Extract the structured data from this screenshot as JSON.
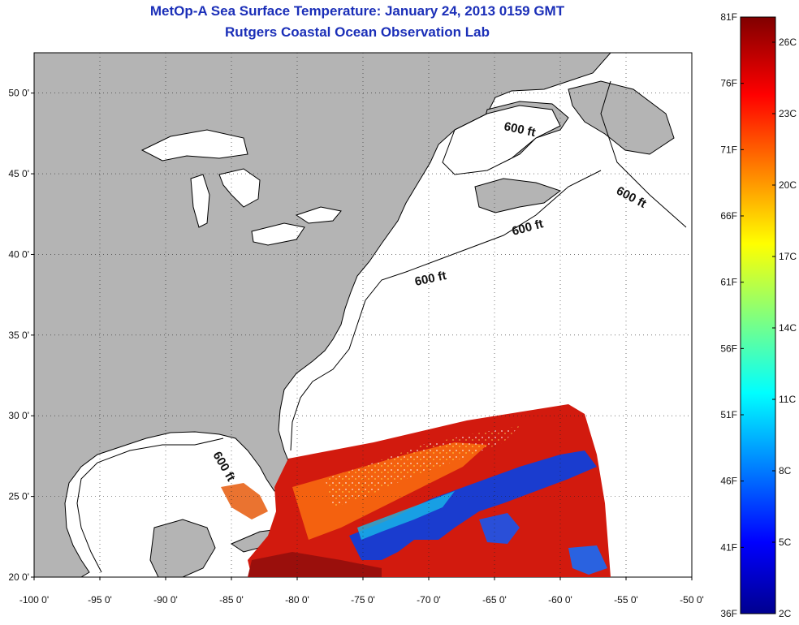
{
  "title": "MetOp-A Sea Surface Temperature:  January 24, 2013 0159 GMT",
  "subtitle": "Rutgers Coastal Ocean Observation Lab",
  "map": {
    "x_ticks": [
      "-100 0'",
      "-95 0'",
      "-90 0'",
      "-85 0'",
      "-80 0'",
      "-75 0'",
      "-70 0'",
      "-65 0'",
      "-60 0'",
      "-55 0'",
      "-50 0'"
    ],
    "y_ticks": [
      "50 0'",
      "45 0'",
      "40 0'",
      "35 0'",
      "30 0'",
      "25 0'",
      "20 0'"
    ],
    "lon_range": [
      -100,
      -50
    ],
    "lat_range": [
      20,
      52.5
    ],
    "grid": "dotted",
    "contour_label": "600 ft",
    "land_color": "#b4b4b4",
    "ocean_color": "#ffffff"
  },
  "colorbar": {
    "f_labels": [
      "81F",
      "76F",
      "71F",
      "66F",
      "61F",
      "56F",
      "51F",
      "46F",
      "41F",
      "36F"
    ],
    "c_labels": [
      "26C",
      "23C",
      "20C",
      "17C",
      "14C",
      "11C",
      "8C",
      "5C",
      "2C"
    ],
    "colormap": "jet"
  }
}
